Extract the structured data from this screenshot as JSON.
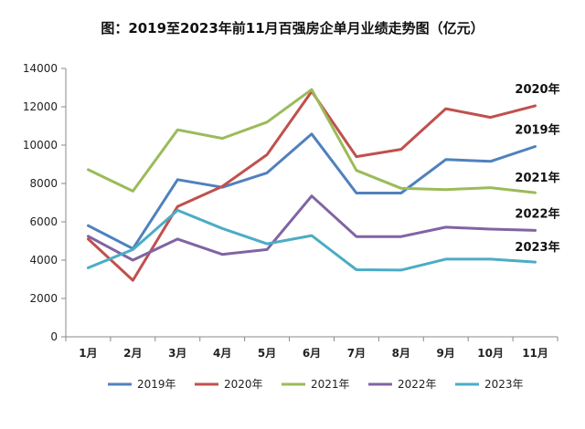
{
  "chart_data": {
    "type": "line",
    "title": "图：2019至2023年前11月百强房企单月业绩走势图（亿元）",
    "xlabel": "",
    "ylabel": "",
    "categories": [
      "1月",
      "2月",
      "3月",
      "4月",
      "5月",
      "6月",
      "7月",
      "8月",
      "9月",
      "10月",
      "11月"
    ],
    "ylim": [
      0,
      14000
    ],
    "yticks": [
      0,
      2000,
      4000,
      6000,
      8000,
      10000,
      12000,
      14000
    ],
    "grid": false,
    "legend": "bottom",
    "series": [
      {
        "name": "2019年",
        "color": "#4F81BD",
        "values": [
          5800,
          4600,
          8200,
          7800,
          8550,
          10580,
          7500,
          7500,
          9250,
          9150,
          9930
        ]
      },
      {
        "name": "2020年",
        "color": "#C0504D",
        "values": [
          5100,
          2950,
          6800,
          7850,
          9500,
          12800,
          9400,
          9780,
          11900,
          11450,
          12050
        ]
      },
      {
        "name": "2021年",
        "color": "#9BBB59",
        "values": [
          8720,
          7600,
          10800,
          10350,
          11200,
          12900,
          8680,
          7750,
          7680,
          7780,
          7520
        ]
      },
      {
        "name": "2022年",
        "color": "#8064A2",
        "values": [
          5250,
          4000,
          5100,
          4300,
          4550,
          7350,
          5230,
          5230,
          5720,
          5620,
          5550
        ]
      },
      {
        "name": "2023年",
        "color": "#4BACC6",
        "values": [
          3600,
          4550,
          6600,
          5650,
          4850,
          5280,
          3500,
          3480,
          4050,
          4050,
          3900
        ]
      }
    ]
  }
}
